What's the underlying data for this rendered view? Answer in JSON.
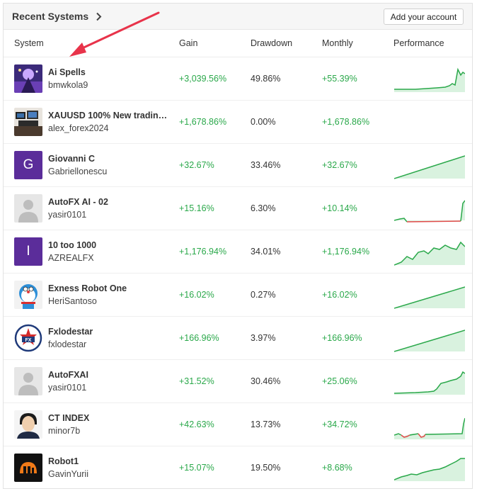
{
  "header": {
    "title": "Recent Systems",
    "add_button": "Add your account"
  },
  "columns": {
    "system": "System",
    "gain": "Gain",
    "drawdown": "Drawdown",
    "monthly": "Monthly",
    "performance": "Performance"
  },
  "colors": {
    "gain_green": "#2aa84a",
    "loss_red": "#e24a4a",
    "area_fill": "#d9f2df",
    "avatar_purple": "#5b2d9a"
  },
  "rows": [
    {
      "name": "Ai Spells",
      "user": "bmwkola9",
      "gain": "+3,039.56%",
      "drawdown": "49.86%",
      "monthly": "+55.39%",
      "avatar": "ai-spells-icon"
    },
    {
      "name": "XAUUSD 100% New trading...",
      "user": "alex_forex2024",
      "gain": "+1,678.86%",
      "drawdown": "0.00%",
      "monthly": "+1,678.86%",
      "avatar": "trading-desk-icon"
    },
    {
      "name": "Giovanni C",
      "user": "Gabriellonescu",
      "gain": "+32.67%",
      "drawdown": "33.46%",
      "monthly": "+32.67%",
      "avatar_letter": "G"
    },
    {
      "name": "AutoFX AI - 02",
      "user": "yasir0101",
      "gain": "+15.16%",
      "drawdown": "6.30%",
      "monthly": "+10.14%",
      "avatar": "default-user-icon"
    },
    {
      "name": "10 too 1000",
      "user": "AZREALFX",
      "gain": "+1,176.94%",
      "drawdown": "34.01%",
      "monthly": "+1,176.94%",
      "avatar_letter": "I"
    },
    {
      "name": "Exness Robot One",
      "user": "HeriSantoso",
      "gain": "+16.02%",
      "drawdown": "0.27%",
      "monthly": "+16.02%",
      "avatar": "doraemon-icon"
    },
    {
      "name": "Fxlodestar",
      "user": "fxlodestar",
      "gain": "+166.96%",
      "drawdown": "3.97%",
      "monthly": "+166.96%",
      "avatar": "fx-star-logo-icon"
    },
    {
      "name": "AutoFXAI",
      "user": "yasir0101",
      "gain": "+31.52%",
      "drawdown": "30.46%",
      "monthly": "+25.06%",
      "avatar": "default-user-icon"
    },
    {
      "name": "CT INDEX",
      "user": "minor7b",
      "gain": "+42.63%",
      "drawdown": "13.73%",
      "monthly": "+34.72%",
      "avatar": "person-photo-icon"
    },
    {
      "name": "Robot1",
      "user": "GavinYurii",
      "gain": "+15.07%",
      "drawdown": "19.50%",
      "monthly": "+8.68%",
      "avatar": "robot-logo-icon"
    }
  ]
}
